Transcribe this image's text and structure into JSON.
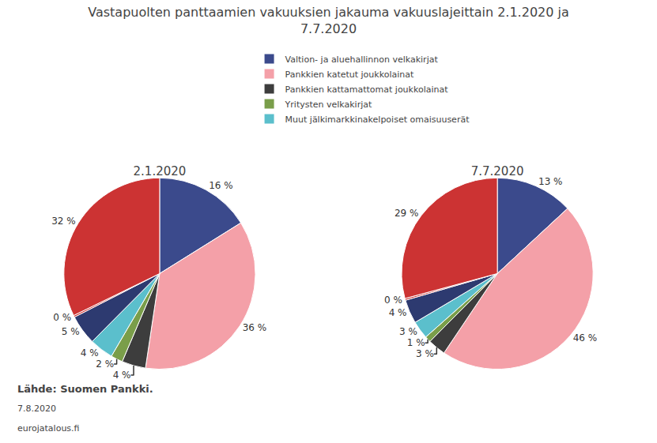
{
  "chart_data": {
    "type": "pie",
    "title": "Vastapuolten panttaamien vakuuksien jakauma vakuuslajeittain 2.1.2020 ja\n7.7.2020",
    "categories": [
      "Valtion- ja aluehallinnon velkakirjat",
      "Pankkien katetut joukkolainat",
      "Pankkien kattamattomat joukkolainat",
      "Yritysten velkakirjat",
      "Muut jälkimarkkinakelpoiset omaisuuserät",
      null,
      null,
      null
    ],
    "colors": [
      "#3b4a8c",
      "#f4a0a8",
      "#3d3d3d",
      "#7a9e4a",
      "#5bbfcc",
      "#2d3a70",
      "#cc3333",
      "#cc3333"
    ],
    "series": [
      {
        "name": "2.1.2020",
        "values": [
          16,
          36,
          4,
          2,
          4,
          5,
          0.3,
          32
        ],
        "value_labels": [
          "16 %",
          "36 %",
          "4 %",
          "2 %",
          "4 %",
          "5 %",
          "0 %",
          "32 %"
        ]
      },
      {
        "name": "7.7.2020",
        "values": [
          13,
          46,
          3,
          1,
          3,
          4,
          0.3,
          29
        ],
        "value_labels": [
          "13 %",
          "46 %",
          "3 %",
          "1 %",
          "3 %",
          "4 %",
          "0 %",
          "29 %"
        ]
      }
    ],
    "data_labels": true,
    "legend": "upper left",
    "annotations": [
      "Lähde: Suomen Pankki.",
      "7.8.2020",
      "eurojatalous.fi"
    ]
  }
}
